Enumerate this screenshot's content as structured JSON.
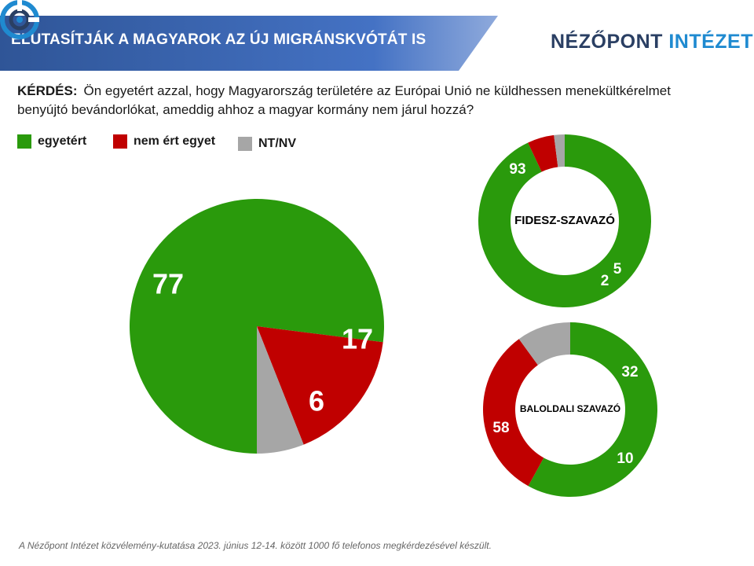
{
  "header": {
    "title": "ELUTASÍTJÁK A MAGYAROK AZ ÚJ MIGRÁNSKVÓTÁT IS",
    "logo_main": "NÉZŐPONT ",
    "logo_accent": "INTÉZET"
  },
  "question": {
    "label": "KÉRDÉS:",
    "text": "Ön egyetért azzal, hogy Magyarország területére az Európai Unió ne küldhessen menekültkérelmet benyújtó bevándorlókat, ameddig ahhoz a magyar kormány nem járul hozzá?"
  },
  "legend": [
    {
      "label": "egyetért",
      "color": "#2a9a0c"
    },
    {
      "label": "nem ért egyet",
      "color": "#c00000"
    },
    {
      "label": "NT/NV",
      "color": "#a6a6a6"
    }
  ],
  "chart_data": [
    {
      "type": "pie",
      "title": "",
      "categories": [
        "egyetért",
        "nem ért egyet",
        "NT/NV"
      ],
      "values": [
        77,
        17,
        6
      ],
      "colors": [
        "#2a9a0c",
        "#c00000",
        "#a6a6a6"
      ]
    },
    {
      "type": "pie",
      "variant": "donut",
      "title": "FIDESZ-SZAVAZÓ",
      "categories": [
        "egyetért",
        "nem ért egyet",
        "NT/NV"
      ],
      "values": [
        93,
        5,
        2
      ],
      "colors": [
        "#2a9a0c",
        "#c00000",
        "#a6a6a6"
      ]
    },
    {
      "type": "pie",
      "variant": "donut",
      "title": "BALOLDALI SZAVAZÓ",
      "categories": [
        "egyetért",
        "nem ért egyet",
        "NT/NV"
      ],
      "values": [
        58,
        32,
        10
      ],
      "colors": [
        "#2a9a0c",
        "#c00000",
        "#a6a6a6"
      ]
    }
  ],
  "footnote": "A Nézőpont Intézet közvélemény-kutatása  2023. június 12-14. között 1000 fő telefonos megkérdezésével  készült."
}
